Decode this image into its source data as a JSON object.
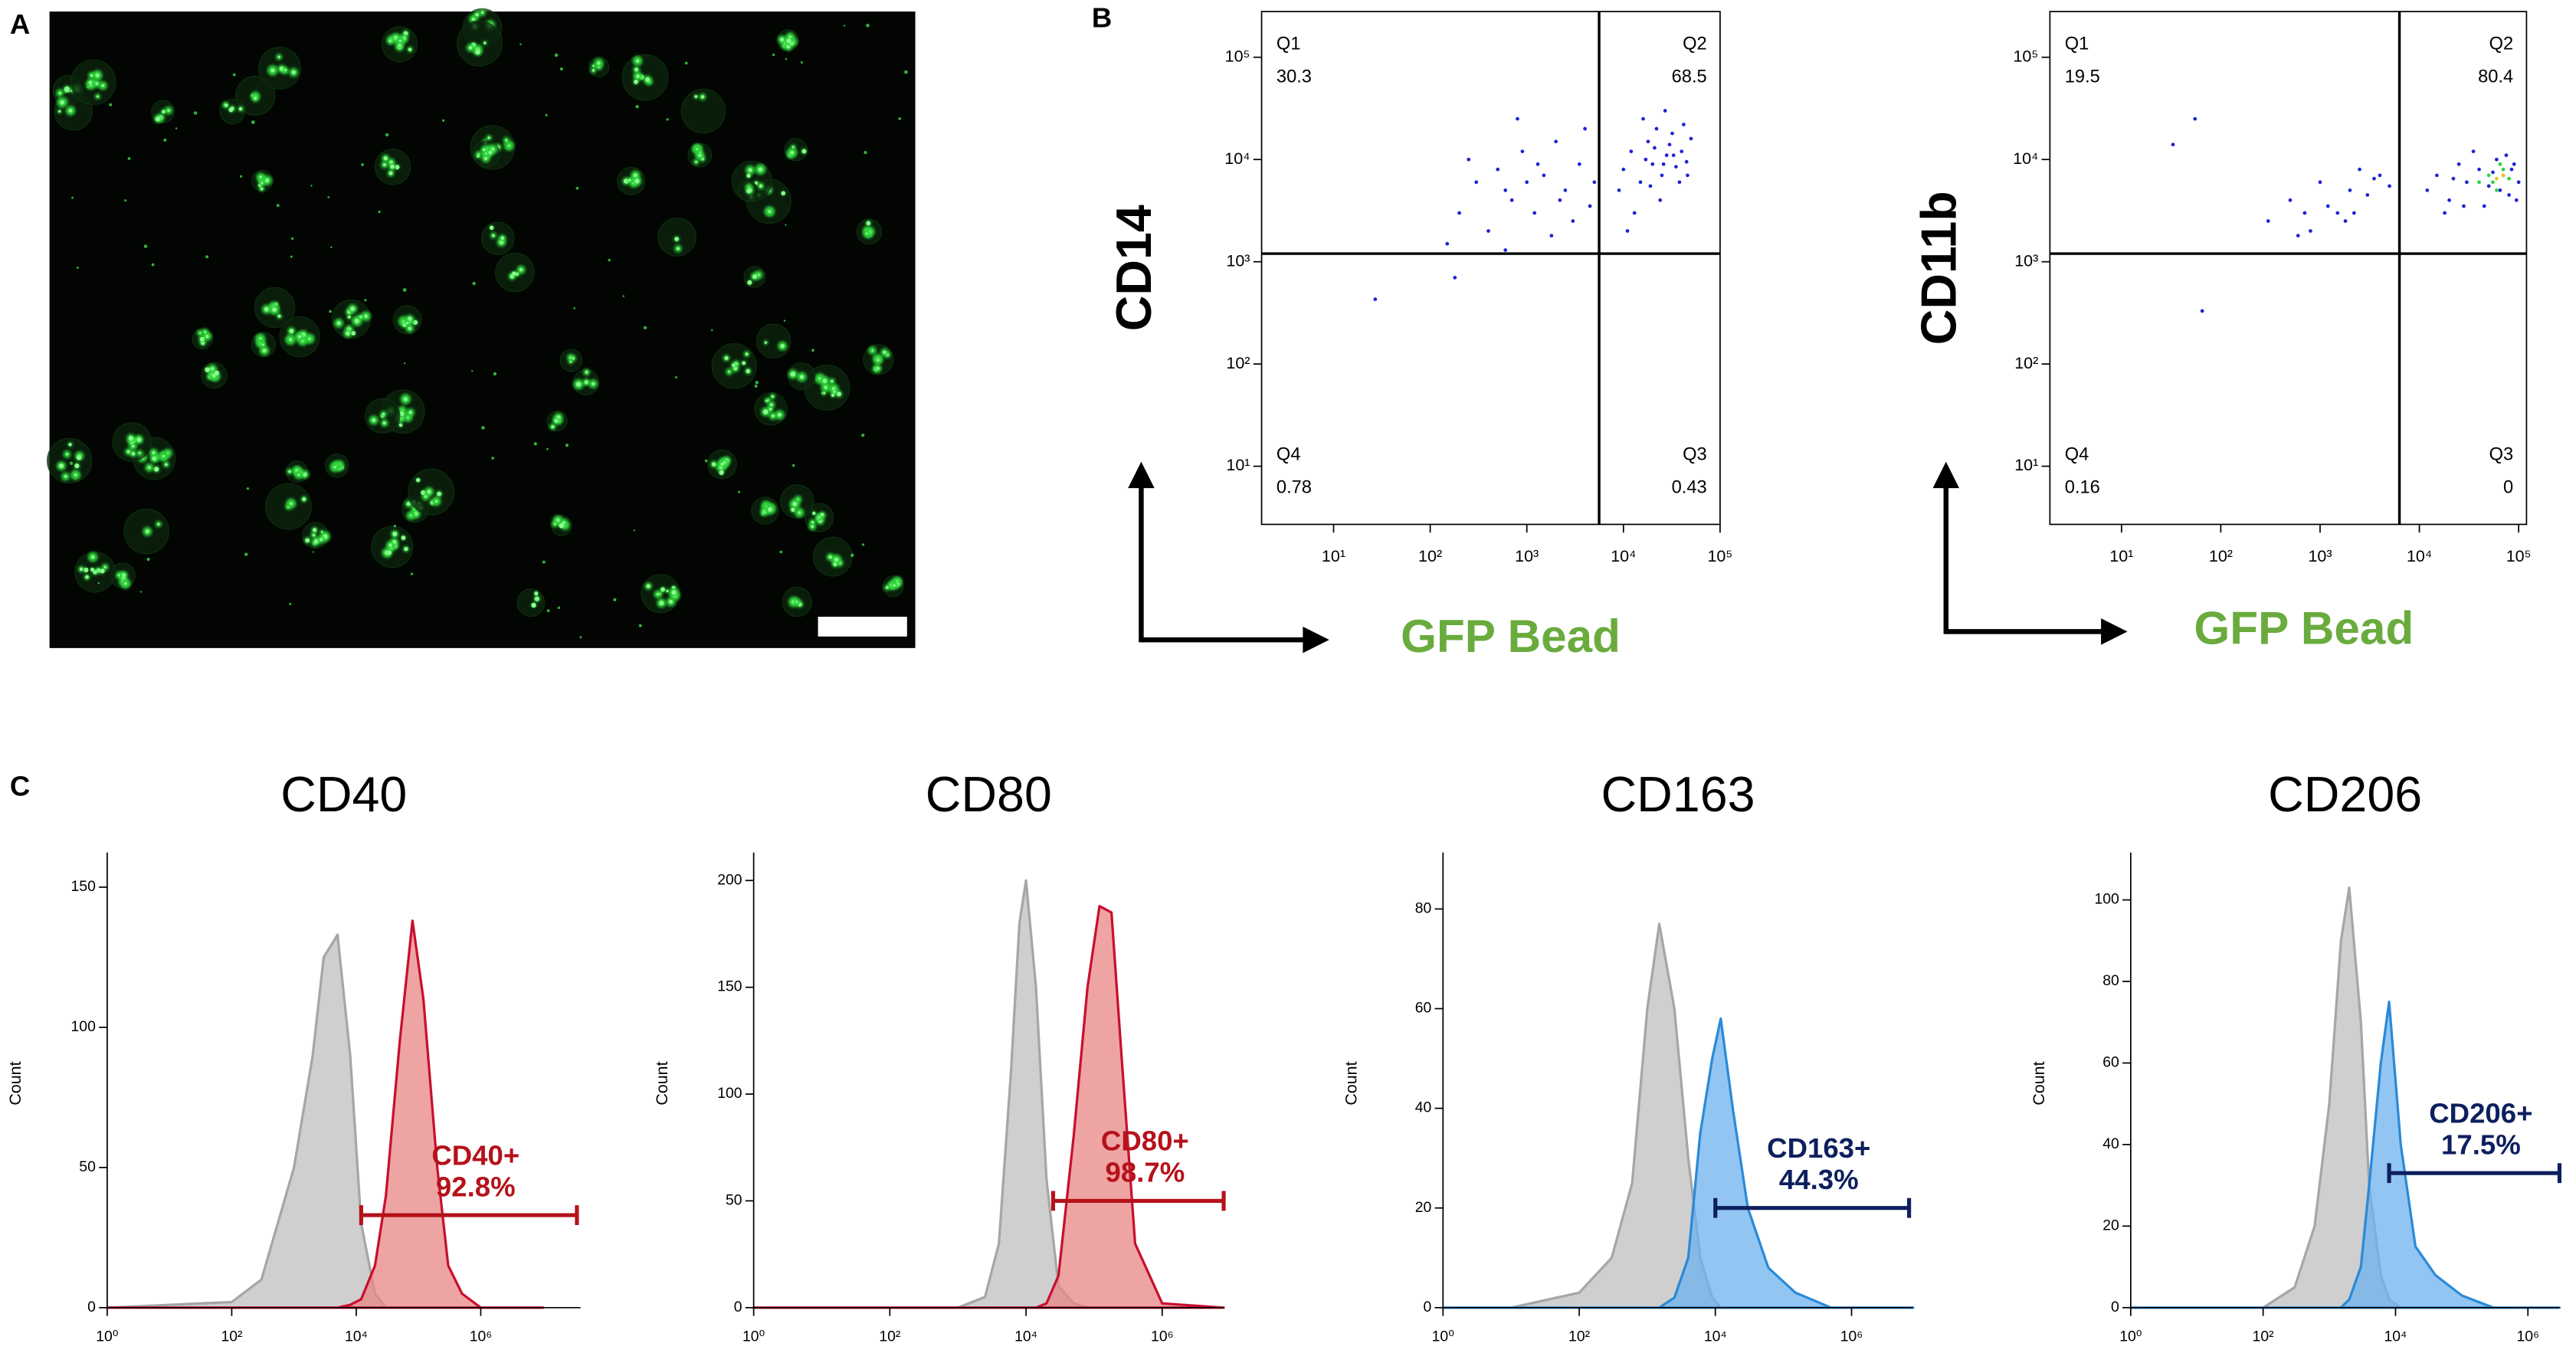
{
  "panel_labels": [
    "A",
    "B",
    "C"
  ],
  "chart_data": [
    {
      "type": "scatter",
      "ylabel": "CD14",
      "xlabel": "GFP Bead",
      "log_scale": true,
      "xlim": [
        1.8,
        100000
      ],
      "ylim": [
        2.7,
        280000
      ],
      "xticks": [
        {
          "value": 10,
          "label": "10¹"
        },
        {
          "value": 100,
          "label": "10²"
        },
        {
          "value": 1000,
          "label": "10³"
        },
        {
          "value": 10000,
          "label": "10⁴"
        },
        {
          "value": 100000,
          "label": "10⁵"
        }
      ],
      "yticks": [
        {
          "value": 10,
          "label": "10¹"
        },
        {
          "value": 100,
          "label": "10²"
        },
        {
          "value": 1000,
          "label": "10³"
        },
        {
          "value": 10000,
          "label": "10⁴"
        },
        {
          "value": 100000,
          "label": "10⁵"
        }
      ],
      "gate": {
        "x": 5600,
        "y": 1200
      },
      "quadrants": [
        {
          "name": "Q1",
          "value": 30.3
        },
        {
          "name": "Q2",
          "value": 68.5
        },
        {
          "name": "Q3",
          "value": 0.43
        },
        {
          "name": "Q4",
          "value": 0.78
        }
      ],
      "series": [
        {
          "color": "#1f22d6",
          "x": [
            10000,
            12000,
            15000,
            18000,
            20000,
            22000,
            25000,
            28000,
            30000,
            35000,
            40000,
            45000,
            50000,
            9000,
            13000,
            16000,
            24000,
            32000,
            38000,
            42000,
            11000,
            27000,
            200,
            300,
            400,
            500,
            700,
            900,
            1200,
            1500,
            2000,
            2500,
            3000,
            3500,
            4000,
            5000,
            150,
            600,
            1800,
            800,
            250,
            4500,
            27,
            180,
            17000,
            21000,
            26000,
            33000,
            46000,
            19000,
            1000,
            1300,
            2200,
            600
          ],
          "values": [
            8000,
            12000,
            6000,
            15000,
            9000,
            20000,
            7000,
            11000,
            14000,
            8500,
            12000,
            9500,
            16000,
            5000,
            3000,
            25000,
            4000,
            18000,
            6000,
            22000,
            2000,
            30000,
            3000,
            6000,
            2000,
            8000,
            4000,
            12000,
            3000,
            7000,
            15000,
            5000,
            2500,
            9000,
            20000,
            6000,
            1500,
            1300,
            1800,
            25000,
            10000,
            3500,
            430,
            700,
            10000,
            13000,
            9000,
            11000,
            7000,
            5500,
            6000,
            9000,
            4000,
            5000
          ]
        }
      ]
    },
    {
      "type": "scatter",
      "ylabel": "CD11b",
      "xlabel": "GFP Bead",
      "log_scale": true,
      "xlim": [
        1.9,
        120000
      ],
      "ylim": [
        2.7,
        280000
      ],
      "xticks": [
        {
          "value": 10,
          "label": "10¹"
        },
        {
          "value": 100,
          "label": "10²"
        },
        {
          "value": 1000,
          "label": "10³"
        },
        {
          "value": 10000,
          "label": "10⁴"
        },
        {
          "value": 100000,
          "label": "10⁵"
        }
      ],
      "yticks": [
        {
          "value": 10,
          "label": "10¹"
        },
        {
          "value": 100,
          "label": "10²"
        },
        {
          "value": 1000,
          "label": "10³"
        },
        {
          "value": 10000,
          "label": "10⁴"
        },
        {
          "value": 100000,
          "label": "10⁵"
        }
      ],
      "gate": {
        "x": 6300,
        "y": 1200
      },
      "quadrants": [
        {
          "name": "Q1",
          "value": 19.5
        },
        {
          "name": "Q2",
          "value": 80.4
        },
        {
          "name": "Q3",
          "value": 0
        },
        {
          "name": "Q4",
          "value": 0.16
        }
      ],
      "series": [
        {
          "color": "#1f22d6",
          "x": [
            12000,
            15000,
            20000,
            25000,
            30000,
            40000,
            50000,
            60000,
            70000,
            80000,
            90000,
            100000,
            18000,
            35000,
            45000,
            55000,
            65000,
            75000,
            85000,
            95000,
            22000,
            28000,
            300,
            500,
            800,
            1000,
            1500,
            2000,
            2500,
            3000,
            4000,
            5000,
            600,
            1200,
            1800,
            3500,
            700,
            2200,
            33,
            55,
            65
          ],
          "values": [
            5000,
            7000,
            4000,
            9000,
            6000,
            8000,
            5500,
            10000,
            7000,
            4500,
            9000,
            6000,
            3000,
            12000,
            3500,
            7500,
            5000,
            11000,
            8000,
            4000,
            6500,
            3500,
            2500,
            4000,
            2000,
            6000,
            3000,
            5000,
            8000,
            4500,
            7000,
            5500,
            1800,
            3500,
            2500,
            6500,
            3000,
            3000,
            14000,
            25000,
            330
          ]
        },
        {
          "color": "#2bd14b",
          "x": [
            40000,
            50000,
            60000,
            70000,
            80000,
            55000,
            65000
          ],
          "values": [
            6000,
            7000,
            5000,
            8000,
            6500,
            6000,
            9000
          ]
        },
        {
          "color": "#e6c619",
          "x": [
            60000,
            70000
          ],
          "values": [
            6500,
            7000
          ]
        }
      ]
    },
    {
      "type": "area",
      "title": "CD40",
      "ylabel": "Count",
      "log_scale": true,
      "xlim": [
        1,
        40000000
      ],
      "ylim": [
        0,
        160
      ],
      "xticks": [
        {
          "value": 1,
          "label": "10⁰"
        },
        {
          "value": 100,
          "label": "10²"
        },
        {
          "value": 10000,
          "label": "10⁴"
        },
        {
          "value": 1000000,
          "label": "10⁶"
        }
      ],
      "yticks": [
        0,
        50,
        100,
        150
      ],
      "x": [
        1,
        100,
        300,
        1000,
        2000,
        3000,
        5000,
        8000,
        12000,
        20000,
        30000,
        50000,
        80000,
        120000,
        200000,
        300000,
        500000,
        1000000,
        10000000
      ],
      "series": [
        {
          "color": "#cfcfcf",
          "edge": "#a6a6a6",
          "values": [
            0,
            2,
            10,
            50,
            90,
            125,
            133,
            90,
            30,
            5,
            0,
            0,
            0,
            0,
            0,
            0,
            0,
            0,
            0
          ]
        },
        {
          "color": "#ea8585",
          "edge": "#c8102e",
          "values": [
            0,
            0,
            0,
            0,
            0,
            0,
            0,
            1,
            3,
            15,
            40,
            95,
            138,
            110,
            50,
            15,
            5,
            0,
            0
          ]
        }
      ],
      "gate": {
        "name": "CD40+",
        "value": 92.8,
        "value_label": "92.8%",
        "x_range": [
          12000,
          35000000
        ],
        "y": 33,
        "color": "#b5121b"
      }
    },
    {
      "type": "area",
      "title": "CD80",
      "ylabel": "Count",
      "log_scale": true,
      "xlim": [
        1,
        8000000
      ],
      "ylim": [
        0,
        210
      ],
      "xticks": [
        {
          "value": 1,
          "label": "10⁰"
        },
        {
          "value": 100,
          "label": "10²"
        },
        {
          "value": 10000,
          "label": "10⁴"
        },
        {
          "value": 1000000,
          "label": "10⁶"
        }
      ],
      "yticks": [
        0,
        50,
        100,
        150,
        200
      ],
      "x": [
        1,
        1000,
        2500,
        4000,
        6000,
        8000,
        10000,
        14000,
        20000,
        30000,
        50000,
        80000,
        120000,
        180000,
        250000,
        400000,
        1000000,
        8000000
      ],
      "series": [
        {
          "color": "#cfcfcf",
          "edge": "#a6a6a6",
          "values": [
            0,
            0,
            5,
            30,
            110,
            180,
            200,
            150,
            60,
            10,
            2,
            0,
            0,
            0,
            0,
            0,
            0,
            0
          ]
        },
        {
          "color": "#ea8585",
          "edge": "#c8102e",
          "values": [
            0,
            0,
            0,
            0,
            0,
            0,
            0,
            0,
            2,
            15,
            80,
            150,
            188,
            185,
            120,
            30,
            2,
            0
          ]
        }
      ],
      "gate": {
        "name": "CD80+",
        "value": 98.7,
        "value_label": "98.7%",
        "x_range": [
          25000,
          8000000
        ],
        "y": 50,
        "color": "#b5121b"
      }
    },
    {
      "type": "area",
      "title": "CD163",
      "ylabel": "Count",
      "log_scale": true,
      "xlim": [
        1,
        8000000
      ],
      "ylim": [
        0,
        90
      ],
      "xticks": [
        {
          "value": 1,
          "label": "10⁰"
        },
        {
          "value": 100,
          "label": "10²"
        },
        {
          "value": 10000,
          "label": "10⁴"
        },
        {
          "value": 1000000,
          "label": "10⁶"
        }
      ],
      "yticks": [
        0,
        20,
        40,
        60,
        80
      ],
      "x": [
        1,
        10,
        100,
        300,
        600,
        1000,
        1500,
        2500,
        4000,
        6000,
        9000,
        12000,
        18000,
        30000,
        60000,
        150000,
        500000,
        8000000
      ],
      "series": [
        {
          "color": "#cfcfcf",
          "edge": "#a6a6a6",
          "values": [
            0,
            0,
            3,
            10,
            25,
            60,
            77,
            60,
            30,
            10,
            2,
            0,
            0,
            0,
            0,
            0,
            0,
            0
          ]
        },
        {
          "color": "#6fb2ee",
          "edge": "#2a8ad8",
          "values": [
            0,
            0,
            0,
            0,
            0,
            0,
            0,
            2,
            10,
            35,
            50,
            58,
            40,
            20,
            8,
            3,
            0,
            0
          ]
        }
      ],
      "gate": {
        "name": "CD163+",
        "value": 44.3,
        "value_label": "44.3%",
        "x_range": [
          10000,
          7000000
        ],
        "y": 20,
        "color": "#0d1f5e"
      }
    },
    {
      "type": "area",
      "title": "CD206",
      "ylabel": "Count",
      "log_scale": true,
      "xlim": [
        1,
        3000000
      ],
      "ylim": [
        0,
        110
      ],
      "xticks": [
        {
          "value": 1,
          "label": "10⁰"
        },
        {
          "value": 100,
          "label": "10²"
        },
        {
          "value": 10000,
          "label": "10⁴"
        },
        {
          "value": 1000000,
          "label": "10⁶"
        }
      ],
      "yticks": [
        0,
        20,
        40,
        60,
        80,
        100
      ],
      "x": [
        1,
        100,
        300,
        600,
        1000,
        1500,
        2000,
        3000,
        4000,
        6000,
        8000,
        12000,
        20000,
        40000,
        100000,
        300000,
        3000000
      ],
      "series": [
        {
          "color": "#cfcfcf",
          "edge": "#a6a6a6",
          "values": [
            0,
            0,
            5,
            20,
            50,
            90,
            103,
            70,
            30,
            8,
            2,
            0,
            0,
            0,
            0,
            0,
            0
          ]
        },
        {
          "color": "#6fb2ee",
          "edge": "#2a8ad8",
          "values": [
            0,
            0,
            0,
            0,
            0,
            0,
            2,
            10,
            30,
            60,
            75,
            40,
            15,
            8,
            3,
            0,
            0
          ]
        }
      ],
      "gate": {
        "name": "CD206+",
        "value": 17.5,
        "value_label": "17.5%",
        "x_range": [
          8000,
          3000000
        ],
        "y": 33,
        "color": "#0d1f5e"
      }
    }
  ]
}
